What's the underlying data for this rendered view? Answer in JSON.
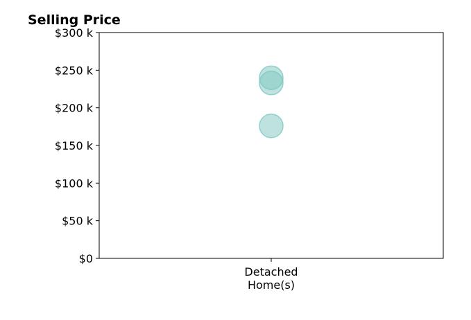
{
  "chart_data": {
    "type": "scatter",
    "title": "Selling Price",
    "xlabel": "",
    "ylabel": "",
    "categories": [
      "Detached\nHome(s)"
    ],
    "y_ticks": [
      "$0",
      "$50 k",
      "$100 k",
      "$150 k",
      "$200 k",
      "$250 k",
      "$300 k"
    ],
    "ylim": [
      0,
      300000
    ],
    "grid": false,
    "legend": false,
    "marker_color": "#7ec8c0",
    "points": [
      {
        "category": "Detached\nHome(s)",
        "value": 240000
      },
      {
        "category": "Detached\nHome(s)",
        "value": 233000
      },
      {
        "category": "Detached\nHome(s)",
        "value": 176000
      }
    ]
  }
}
